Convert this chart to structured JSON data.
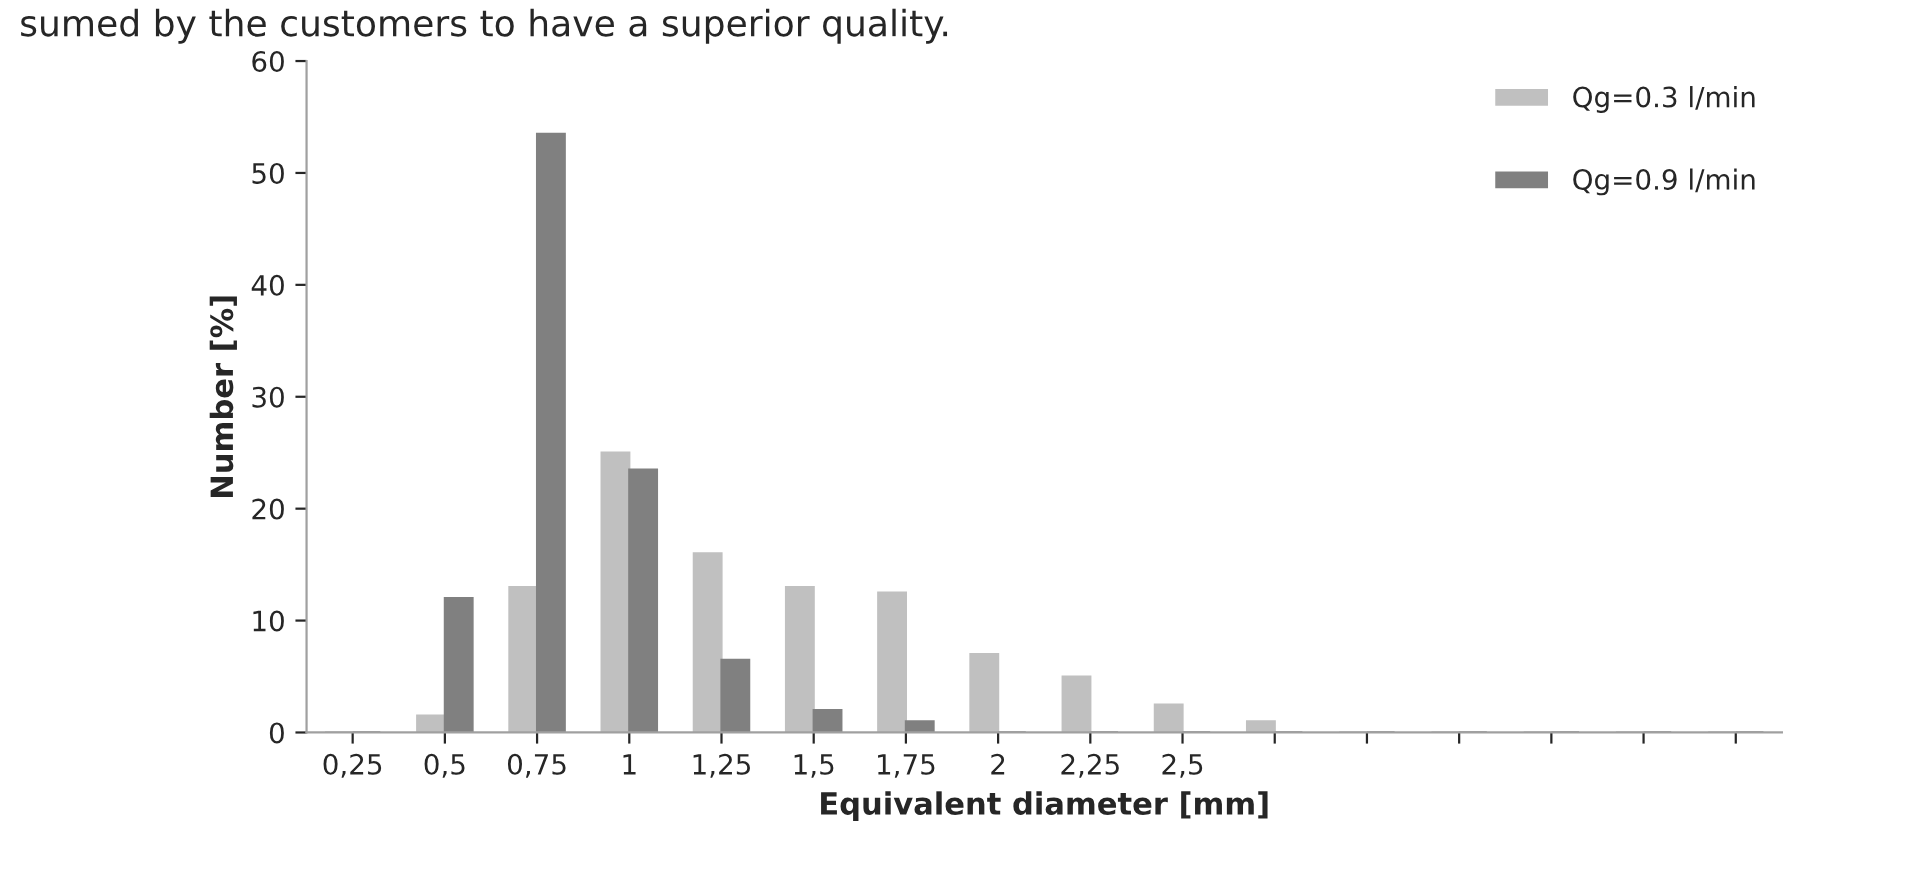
{
  "chart_data": {
    "type": "bar",
    "annotations": [
      "sumed by the customers to have a superior quality."
    ],
    "xlabel": "Equivalent diameter [mm]",
    "ylabel": "Number [%]",
    "categories": [
      "0,25",
      "0,5",
      "0,75",
      "1",
      "1,25",
      "1,5",
      "1,75",
      "2",
      "2,25",
      "2,5",
      null,
      null,
      null,
      null,
      null,
      null
    ],
    "series": [
      {
        "name": "Qg=0.3 l/min",
        "color": "#c0c0c0",
        "values": [
          0,
          1.5,
          13,
          25,
          16,
          13,
          12.5,
          7,
          5,
          2.5,
          1,
          0,
          0,
          0,
          0,
          0
        ]
      },
      {
        "name": "Qg=0.9 l/min",
        "color": "#808080",
        "values": [
          0,
          12,
          53.5,
          23.5,
          6.5,
          2,
          1,
          0,
          0,
          0,
          0,
          0,
          0,
          0,
          0,
          0
        ]
      }
    ],
    "ylim": [
      0,
      60
    ],
    "yticks": [
      0,
      10,
      20,
      30,
      40,
      50,
      60
    ],
    "grid": false,
    "legend": "top right"
  }
}
